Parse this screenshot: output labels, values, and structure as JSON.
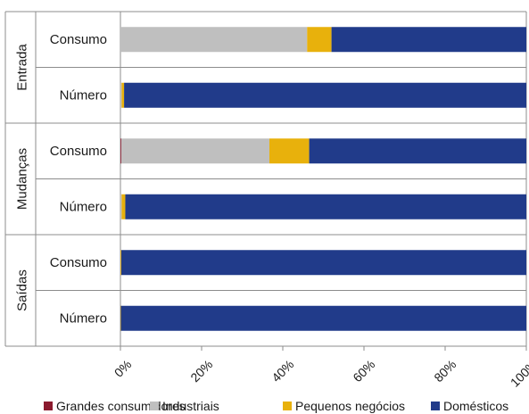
{
  "chart_data": {
    "type": "bar",
    "orientation": "horizontal",
    "stacked": "percent",
    "xlim": [
      0,
      100
    ],
    "x_ticks": [
      "0%",
      "20%",
      "40%",
      "60%",
      "80%",
      "100%"
    ],
    "groups": [
      {
        "name": "Entrada",
        "rows": [
          "Consumo",
          "Número"
        ]
      },
      {
        "name": "Mudanças",
        "rows": [
          "Consumo",
          "Número"
        ]
      },
      {
        "name": "Saídas",
        "rows": [
          "Consumo",
          "Número"
        ]
      }
    ],
    "categories": [
      "Entrada - Consumo",
      "Entrada - Número",
      "Mudanças - Consumo",
      "Mudanças - Número",
      "Saídas - Consumo",
      "Saídas - Número"
    ],
    "series": [
      {
        "name": "Grandes consumidores",
        "color": "#8B1A2E",
        "values": [
          0,
          0,
          0.2,
          0,
          0,
          0
        ]
      },
      {
        "name": "Industriais",
        "color": "#BFBFBF",
        "values": [
          46,
          0.3,
          36.5,
          0.3,
          0,
          0
        ]
      },
      {
        "name": "Pequenos negócios",
        "color": "#E8B10C",
        "values": [
          6,
          0.6,
          9.8,
          0.9,
          0.2,
          0.1
        ]
      },
      {
        "name": "Domésticos",
        "color": "#213B8A",
        "values": [
          48,
          99.1,
          53.5,
          98.8,
          99.8,
          99.9
        ]
      }
    ],
    "legend_position": "bottom",
    "grid": false
  }
}
